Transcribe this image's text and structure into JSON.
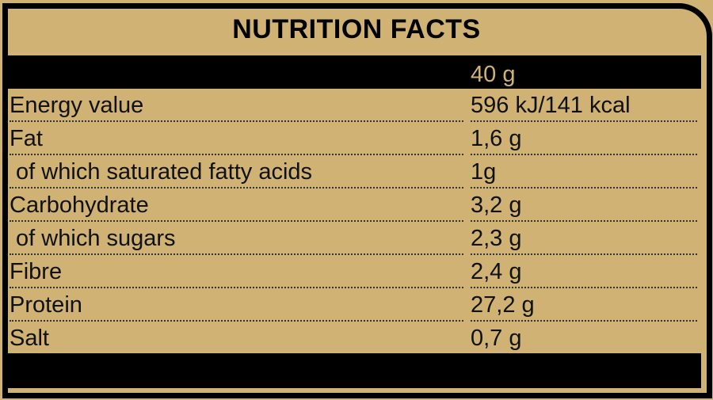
{
  "title": "NUTRITION FACTS",
  "serving": "40 g",
  "rows": [
    {
      "label": "Energy value",
      "value": "596 kJ/141 kcal"
    },
    {
      "label": "Fat",
      "value": "1,6 g"
    },
    {
      "label": " of which saturated fatty acids",
      "value": "1g"
    },
    {
      "label": "Carbohydrate",
      "value": "3,2 g"
    },
    {
      "label": " of which sugars",
      "value": "2,3 g"
    },
    {
      "label": "Fibre",
      "value": "2,4 g"
    },
    {
      "label": "Protein",
      "value": "27,2 g"
    },
    {
      "label": "Salt",
      "value": "0,7 g"
    }
  ],
  "colors": {
    "background": "#cfb274",
    "ink": "#000000"
  }
}
